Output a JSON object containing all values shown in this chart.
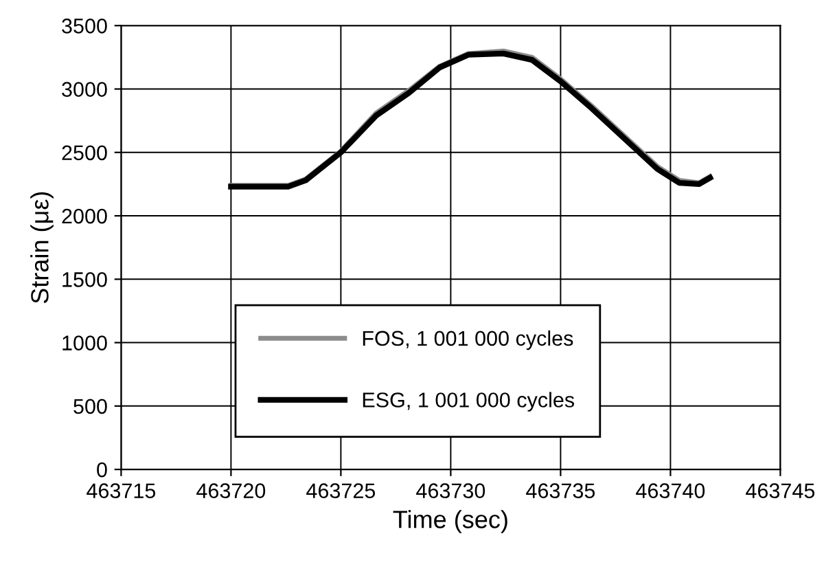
{
  "chart_data": {
    "type": "line",
    "xlabel": "Time (sec)",
    "ylabel": "Strain (με)",
    "xlim": [
      463715,
      463745
    ],
    "xticks": [
      463715,
      463720,
      463725,
      463730,
      463735,
      463740,
      463745
    ],
    "ylim": [
      0,
      3500
    ],
    "yticks": [
      0,
      500,
      1000,
      1500,
      2000,
      2500,
      3000,
      3500
    ],
    "grid": true,
    "legend": "bottom",
    "marker": "none",
    "line_style": "solid",
    "series": [
      {
        "name": "FOS, 1 001 000 cycles",
        "color": "#8c8c8c",
        "x": [
          463720,
          463722.6,
          463723.4,
          463725,
          463726.6,
          463728.1,
          463729.5,
          463730.8,
          463732.4,
          463733.7,
          463735,
          463736.4,
          463737.9,
          463739.4,
          463740.4,
          463741.3,
          463741.8
        ],
        "values": [
          2240,
          2240,
          2290,
          2510,
          2810,
          2990,
          3180,
          3280,
          3300,
          3250,
          3080,
          2870,
          2630,
          2390,
          2280,
          2260,
          2310
        ]
      },
      {
        "name": "ESG, 1 001 000 cycles",
        "color": "#000000",
        "x": [
          463720,
          463722.6,
          463723.4,
          463725,
          463726.6,
          463728.1,
          463729.5,
          463730.8,
          463732.4,
          463733.7,
          463735,
          463736.4,
          463737.9,
          463739.4,
          463740.4,
          463741.3,
          463741.8
        ],
        "values": [
          2230,
          2230,
          2280,
          2500,
          2790,
          2970,
          3170,
          3270,
          3280,
          3230,
          3060,
          2850,
          2610,
          2370,
          2260,
          2250,
          2300
        ]
      }
    ]
  }
}
